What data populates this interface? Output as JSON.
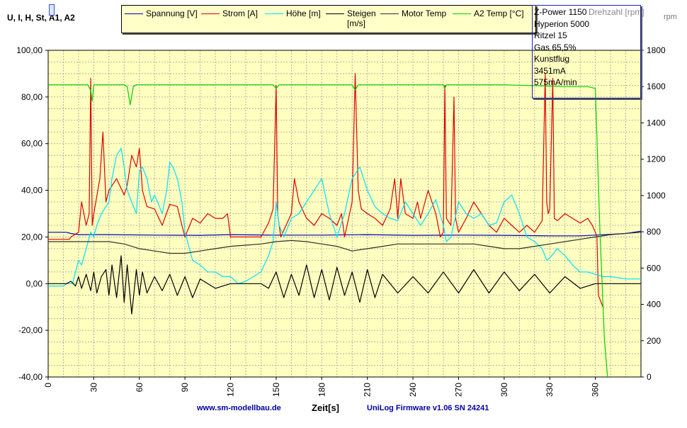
{
  "chart_data": {
    "type": "line",
    "y_axis_title": "U, I, H, St, A1, A2",
    "x_axis_title": "Zeit[s]",
    "xlim": [
      0,
      390
    ],
    "ylim_left": [
      -40,
      100
    ],
    "ylim_right": [
      0,
      1800
    ],
    "x_ticks": [
      0,
      30,
      60,
      90,
      120,
      150,
      180,
      210,
      240,
      270,
      300,
      330,
      360
    ],
    "y_left_ticks": [
      "100,00",
      "80,00",
      "60,00",
      "40,00",
      "20,00",
      "0,00",
      "-20,00",
      "-40,00"
    ],
    "y_right_ticks": [
      "1800",
      "1600",
      "1400",
      "1200",
      "1000",
      "800",
      "600",
      "400",
      "200",
      "0"
    ],
    "grid": true,
    "legend_position": "top",
    "series": [
      {
        "name": "Spannung [V]",
        "color": "#0000c0",
        "axis": "left",
        "x": [
          0,
          12,
          15,
          20,
          40,
          70,
          100,
          120,
          150,
          180,
          210,
          240,
          270,
          300,
          330,
          350,
          360,
          380,
          390
        ],
        "y": [
          22,
          22,
          21.5,
          21,
          21,
          20.8,
          20.7,
          21,
          20.8,
          20.8,
          21,
          20.7,
          20.8,
          20.7,
          20.5,
          20.5,
          20.8,
          21.5,
          22.5
        ]
      },
      {
        "name": "Strom [A]",
        "color": "#e00000",
        "axis": "left",
        "x": [
          0,
          14,
          15,
          20,
          22,
          25,
          27,
          28,
          29,
          30,
          34,
          36,
          38,
          40,
          45,
          50,
          52,
          55,
          58,
          60,
          62,
          65,
          70,
          75,
          80,
          85,
          88,
          90,
          95,
          100,
          105,
          110,
          115,
          118,
          120,
          125,
          130,
          140,
          145,
          148,
          150,
          151,
          152,
          153,
          160,
          162,
          165,
          170,
          175,
          180,
          185,
          190,
          193,
          195,
          200,
          202,
          204,
          206,
          210,
          215,
          220,
          225,
          228,
          230,
          232,
          235,
          240,
          243,
          245,
          250,
          255,
          258,
          260,
          261,
          262,
          265,
          267,
          268,
          270,
          275,
          280,
          285,
          290,
          295,
          300,
          305,
          310,
          315,
          320,
          325,
          327,
          328,
          329,
          330,
          332,
          333,
          335,
          340,
          345,
          350,
          355,
          358,
          360,
          361,
          362,
          365
        ],
        "y": [
          19,
          19,
          20,
          22,
          35,
          25,
          30,
          88,
          25,
          30,
          45,
          65,
          35,
          40,
          45,
          38,
          42,
          55,
          50,
          58,
          40,
          33,
          32,
          25,
          34,
          33,
          25,
          20,
          28,
          26,
          30,
          28,
          28,
          30,
          20,
          20,
          20,
          20,
          26,
          32,
          85,
          30,
          25,
          20,
          30,
          45,
          35,
          28,
          25,
          30,
          28,
          25,
          30,
          20,
          35,
          90,
          40,
          32,
          30,
          28,
          25,
          32,
          45,
          28,
          45,
          30,
          28,
          35,
          28,
          40,
          30,
          20,
          22,
          85,
          28,
          25,
          80,
          28,
          22,
          28,
          35,
          30,
          25,
          22,
          28,
          25,
          22,
          25,
          22,
          27,
          90,
          35,
          30,
          32,
          88,
          28,
          27,
          30,
          28,
          26,
          28,
          25,
          22,
          20,
          -5,
          -10
        ]
      },
      {
        "name": "Höhe [m]",
        "color": "#00e0ff",
        "axis": "left",
        "x": [
          0,
          10,
          12,
          16,
          18,
          20,
          22,
          25,
          28,
          30,
          32,
          35,
          38,
          40,
          42,
          45,
          48,
          50,
          52,
          55,
          58,
          60,
          62,
          65,
          68,
          70,
          72,
          75,
          78,
          80,
          82,
          85,
          88,
          90,
          95,
          100,
          105,
          110,
          115,
          120,
          125,
          130,
          135,
          140,
          145,
          148,
          150,
          152,
          155,
          160,
          165,
          170,
          175,
          180,
          185,
          190,
          195,
          200,
          205,
          210,
          215,
          220,
          225,
          230,
          235,
          240,
          245,
          250,
          255,
          260,
          262,
          265,
          270,
          275,
          280,
          285,
          290,
          295,
          300,
          305,
          310,
          315,
          320,
          325,
          328,
          330,
          335,
          340,
          345,
          350,
          355,
          360,
          365,
          370,
          380,
          390
        ],
        "y": [
          -1,
          -1,
          0,
          0,
          5,
          10,
          8,
          15,
          22,
          20,
          25,
          30,
          33,
          35,
          45,
          55,
          58,
          50,
          40,
          35,
          30,
          48,
          50,
          45,
          35,
          38,
          35,
          30,
          40,
          52,
          50,
          45,
          35,
          22,
          10,
          8,
          5,
          5,
          3,
          3,
          0,
          1,
          3,
          5,
          12,
          18,
          35,
          25,
          20,
          28,
          30,
          35,
          40,
          45,
          30,
          20,
          30,
          45,
          50,
          40,
          33,
          30,
          28,
          27,
          35,
          30,
          25,
          30,
          36,
          25,
          18,
          20,
          35,
          30,
          28,
          30,
          25,
          26,
          35,
          38,
          30,
          20,
          18,
          15,
          10,
          11,
          15,
          12,
          8,
          5,
          5,
          4,
          3,
          3,
          2,
          2
        ]
      },
      {
        "name": "Steigen [m/s]",
        "color": "#000000",
        "axis": "left",
        "x": [
          0,
          12,
          15,
          18,
          20,
          22,
          25,
          28,
          30,
          32,
          35,
          38,
          40,
          42,
          45,
          48,
          50,
          52,
          55,
          58,
          60,
          62,
          65,
          70,
          75,
          80,
          85,
          90,
          95,
          100,
          110,
          120,
          130,
          140,
          145,
          150,
          155,
          160,
          165,
          170,
          175,
          180,
          185,
          190,
          195,
          200,
          205,
          210,
          215,
          220,
          230,
          240,
          250,
          260,
          270,
          280,
          290,
          300,
          310,
          320,
          330,
          340,
          350,
          360,
          370,
          390
        ],
        "y": [
          0,
          0,
          1,
          -1,
          3,
          -2,
          4,
          -3,
          5,
          -4,
          3,
          6,
          -5,
          8,
          -6,
          12,
          -8,
          8,
          -13,
          6,
          -5,
          5,
          -4,
          3,
          -3,
          4,
          -5,
          3,
          -6,
          2,
          -2,
          0,
          0,
          0,
          -2,
          5,
          -6,
          4,
          -5,
          8,
          -6,
          6,
          -7,
          7,
          -5,
          5,
          -8,
          6,
          -6,
          4,
          -4,
          3,
          -4,
          5,
          -4,
          6,
          -4,
          5,
          -3,
          4,
          -4,
          3,
          -2,
          0,
          0,
          0
        ]
      },
      {
        "name": "Motor Temp",
        "color": "#303030",
        "axis": "left",
        "x": [
          0,
          10,
          20,
          30,
          40,
          50,
          60,
          70,
          80,
          90,
          100,
          110,
          120,
          130,
          140,
          150,
          160,
          170,
          180,
          190,
          200,
          210,
          220,
          230,
          240,
          250,
          260,
          270,
          280,
          290,
          300,
          310,
          320,
          330,
          340,
          350,
          360,
          370,
          390
        ],
        "y": [
          18,
          18,
          18,
          18,
          18,
          17,
          15,
          14,
          13,
          13,
          14,
          15,
          16,
          16.5,
          17,
          18,
          18.5,
          18,
          17,
          16,
          14,
          15,
          16,
          17,
          17,
          17,
          17,
          17,
          17,
          16,
          15,
          15,
          16,
          17,
          18,
          19,
          20,
          21,
          22
        ]
      },
      {
        "name": "A2 Temp [°C]",
        "color": "#00d000",
        "axis": "right",
        "x": [
          0,
          26,
          28,
          29,
          30,
          35,
          50,
          52,
          54,
          56,
          58,
          60,
          100,
          148,
          150,
          152,
          200,
          202,
          204,
          260,
          261,
          262,
          300,
          340,
          355,
          360,
          363,
          366,
          368
        ],
        "y": [
          1610,
          1610,
          1580,
          1520,
          1610,
          1610,
          1610,
          1600,
          1500,
          1600,
          1610,
          1610,
          1610,
          1610,
          1590,
          1610,
          1610,
          1580,
          1610,
          1610,
          1590,
          1610,
          1610,
          1600,
          1600,
          1590,
          800,
          200,
          0
        ]
      }
    ]
  },
  "info_box": [
    "Z-Power 1150",
    "Hyperion 5000",
    "Ritzel 15",
    "Gas 65,5%",
    "Kunstflug",
    "3451mA",
    "575mA/min"
  ],
  "info_ghost": "Drehzahl [rpm]",
  "info_ghost2": "rpm",
  "footer": {
    "website": "www.sm-modellbau.de",
    "firmware": "UniLog Firmware v1.06 SN 24241"
  }
}
